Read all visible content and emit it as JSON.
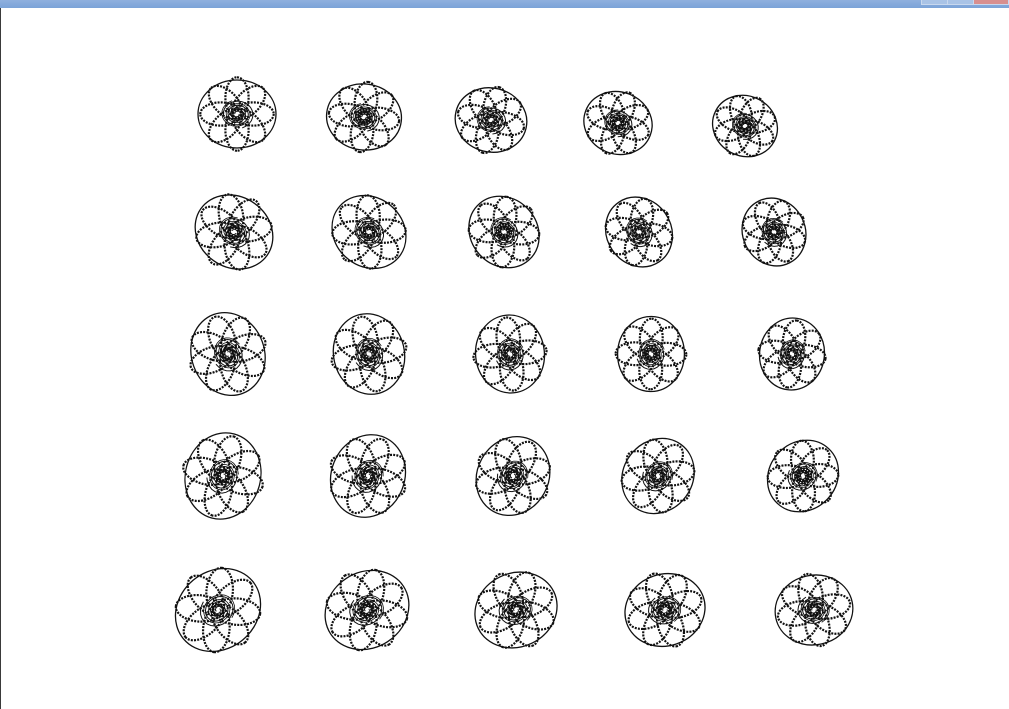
{
  "window": {
    "title": ""
  },
  "drawing": {
    "stroke_color": "#111111",
    "background_color": "#ffffff",
    "rows": 5,
    "columns": 5,
    "shape": "spiral-flower"
  }
}
